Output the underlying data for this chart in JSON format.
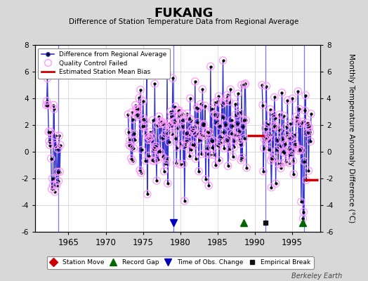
{
  "title": "FUKANG",
  "subtitle": "Difference of Station Temperature Data from Regional Average",
  "ylabel": "Monthly Temperature Anomaly Difference (°C)",
  "xlabel_years": [
    1965,
    1970,
    1975,
    1980,
    1985,
    1990,
    1995
  ],
  "ylim": [
    -6,
    8
  ],
  "yticks": [
    -6,
    -4,
    -2,
    0,
    2,
    4,
    6,
    8
  ],
  "bg_color": "#d8d8d8",
  "plot_bg_color": "#ffffff",
  "line_color": "#3333cc",
  "dot_color": "#000000",
  "qc_circle_color": "#ff99ff",
  "bias_color": "#cc0000",
  "watermark": "Berkeley Earth",
  "legend1_items": [
    "Difference from Regional Average",
    "Quality Control Failed",
    "Estimated Station Mean Bias"
  ],
  "legend2_items": [
    "Station Move",
    "Record Gap",
    "Time of Obs. Change",
    "Empirical Break"
  ],
  "xlim": [
    1960.5,
    1998.8
  ],
  "vline_color": "#7777ff",
  "seg1_start": 1962.0,
  "seg1_end": 1964.0,
  "seg2_start": 1973.0,
  "seg2_end": 1989.0,
  "seg3_start": 1991.0,
  "seg3_end": 1997.5,
  "bias1_x1": 1989.0,
  "bias1_x2": 1991.3,
  "bias1_y": 1.2,
  "bias2_x1": 1996.6,
  "bias2_x2": 1998.5,
  "bias2_y": -2.1,
  "vlines": [
    1963.6,
    1979.1,
    1991.5,
    1996.6
  ],
  "record_gaps": [
    1988.5,
    1996.5
  ],
  "time_obs_changes": [
    1979.1
  ],
  "empirical_breaks": [
    1991.5
  ],
  "station_moves": []
}
